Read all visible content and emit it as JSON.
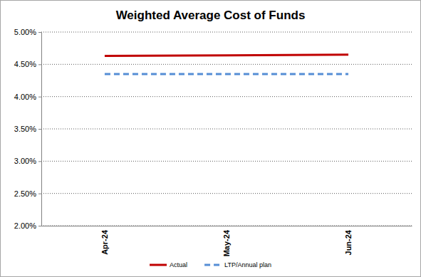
{
  "chart_data": {
    "type": "line",
    "title": "Weighted Average Cost of Funds",
    "categories": [
      "Apr-24",
      "May-24",
      "Jun-24"
    ],
    "series": [
      {
        "name": "Actual",
        "color": "#c00000",
        "line_style": "solid",
        "values": [
          4.63,
          4.64,
          4.65
        ]
      },
      {
        "name": "LTP/Annual plan",
        "color": "#558ed5",
        "line_style": "dashed",
        "values": [
          4.35,
          4.35,
          4.35
        ]
      }
    ],
    "ylim": [
      2,
      5
    ],
    "yticks": [
      {
        "value": 2,
        "label": "2.00%"
      },
      {
        "value": 2.5,
        "label": "2.50%"
      },
      {
        "value": 3,
        "label": "3.00%"
      },
      {
        "value": 3.5,
        "label": "3.50%"
      },
      {
        "value": 4,
        "label": "4.00%"
      },
      {
        "value": 4.5,
        "label": "4.50%"
      },
      {
        "value": 5,
        "label": "5.00%"
      }
    ],
    "grid": true,
    "legend": "bottom"
  }
}
